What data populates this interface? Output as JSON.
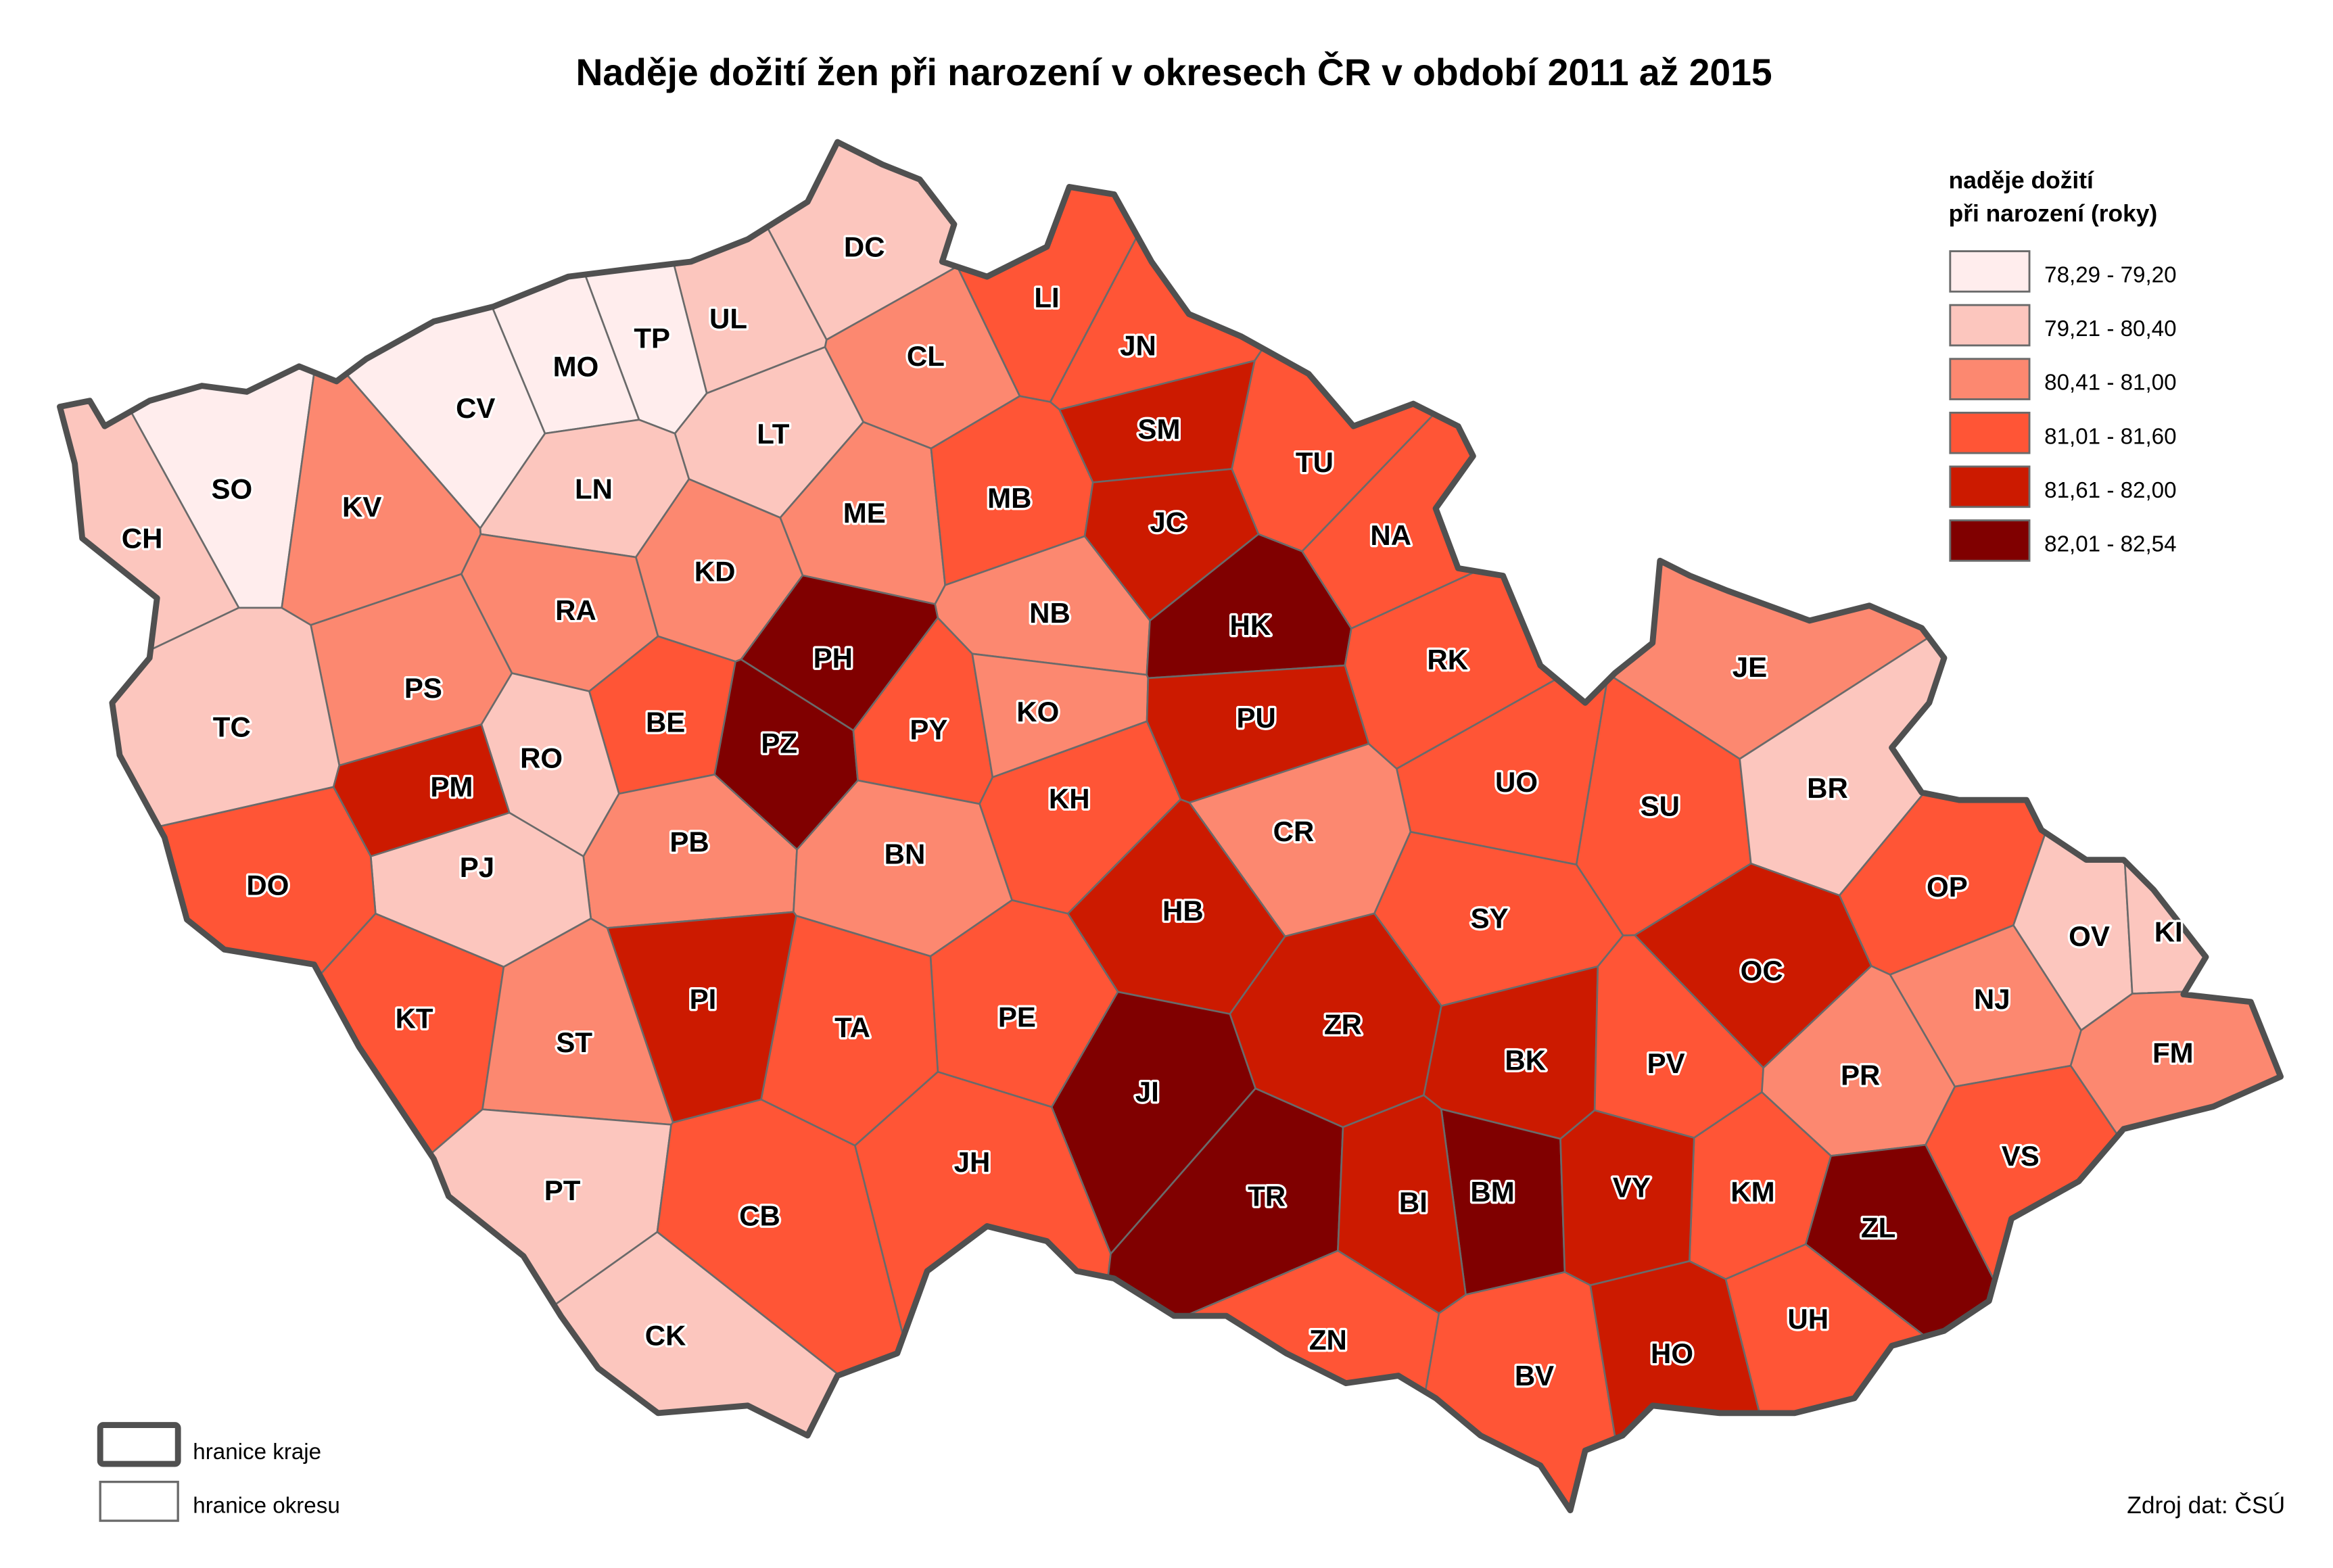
{
  "title": "Naděje dožití žen při narození v okresech ČR v období 2011 až 2015",
  "legend": {
    "title_line1": "naděje dožití",
    "title_line2": "při narození (roky)",
    "classes": [
      {
        "label": "78,29 - 79,20",
        "color": "#FFEDED"
      },
      {
        "label": "79,21 - 80,40",
        "color": "#FCC6BE"
      },
      {
        "label": "80,41 - 81,00",
        "color": "#FC8870"
      },
      {
        "label": "81,01 - 81,60",
        "color": "#FF5536"
      },
      {
        "label": "81,61 - 82,00",
        "color": "#CC1A00"
      },
      {
        "label": "82,01 - 82,54",
        "color": "#800000"
      }
    ]
  },
  "border_legend": {
    "region": "hranice kraje",
    "district": "hranice okresu"
  },
  "source": "Zdroj dat: ČSÚ",
  "districts": [
    {
      "code": "DC",
      "class": 2
    },
    {
      "code": "UL",
      "class": 2
    },
    {
      "code": "TP",
      "class": 1
    },
    {
      "code": "MO",
      "class": 1
    },
    {
      "code": "CV",
      "class": 1
    },
    {
      "code": "LT",
      "class": 2
    },
    {
      "code": "CL",
      "class": 3
    },
    {
      "code": "LI",
      "class": 4
    },
    {
      "code": "JN",
      "class": 4
    },
    {
      "code": "SM",
      "class": 5
    },
    {
      "code": "TU",
      "class": 4
    },
    {
      "code": "SO",
      "class": 1
    },
    {
      "code": "KV",
      "class": 3
    },
    {
      "code": "CH",
      "class": 2
    },
    {
      "code": "LN",
      "class": 2
    },
    {
      "code": "ME",
      "class": 3
    },
    {
      "code": "MB",
      "class": 4
    },
    {
      "code": "JC",
      "class": 5
    },
    {
      "code": "NA",
      "class": 4
    },
    {
      "code": "RA",
      "class": 3
    },
    {
      "code": "KD",
      "class": 3
    },
    {
      "code": "NB",
      "class": 3
    },
    {
      "code": "HK",
      "class": 6
    },
    {
      "code": "RK",
      "class": 4
    },
    {
      "code": "JE",
      "class": 3
    },
    {
      "code": "PH",
      "class": 6
    },
    {
      "code": "PS",
      "class": 3
    },
    {
      "code": "TC",
      "class": 2
    },
    {
      "code": "BE",
      "class": 4
    },
    {
      "code": "PZ",
      "class": 6
    },
    {
      "code": "PY",
      "class": 4
    },
    {
      "code": "KO",
      "class": 3
    },
    {
      "code": "PU",
      "class": 5
    },
    {
      "code": "RO",
      "class": 2
    },
    {
      "code": "PM",
      "class": 5
    },
    {
      "code": "KH",
      "class": 4
    },
    {
      "code": "UO",
      "class": 4
    },
    {
      "code": "SU",
      "class": 4
    },
    {
      "code": "BR",
      "class": 2
    },
    {
      "code": "CR",
      "class": 3
    },
    {
      "code": "PB",
      "class": 3
    },
    {
      "code": "BN",
      "class": 3
    },
    {
      "code": "PJ",
      "class": 2
    },
    {
      "code": "DO",
      "class": 4
    },
    {
      "code": "OP",
      "class": 4
    },
    {
      "code": "HB",
      "class": 5
    },
    {
      "code": "SY",
      "class": 4
    },
    {
      "code": "OV",
      "class": 2
    },
    {
      "code": "KI",
      "class": 2
    },
    {
      "code": "OC",
      "class": 5
    },
    {
      "code": "NJ",
      "class": 3
    },
    {
      "code": "PI",
      "class": 5
    },
    {
      "code": "PE",
      "class": 4
    },
    {
      "code": "TA",
      "class": 4
    },
    {
      "code": "KT",
      "class": 4
    },
    {
      "code": "ZR",
      "class": 5
    },
    {
      "code": "ST",
      "class": 3
    },
    {
      "code": "FM",
      "class": 3
    },
    {
      "code": "BK",
      "class": 5
    },
    {
      "code": "PV",
      "class": 4
    },
    {
      "code": "PR",
      "class": 3
    },
    {
      "code": "JI",
      "class": 6
    },
    {
      "code": "VS",
      "class": 4
    },
    {
      "code": "JH",
      "class": 4
    },
    {
      "code": "PT",
      "class": 2
    },
    {
      "code": "KM",
      "class": 4
    },
    {
      "code": "TR",
      "class": 6
    },
    {
      "code": "BM",
      "class": 6
    },
    {
      "code": "VY",
      "class": 5
    },
    {
      "code": "BI",
      "class": 5
    },
    {
      "code": "CB",
      "class": 4
    },
    {
      "code": "ZL",
      "class": 6
    },
    {
      "code": "UH",
      "class": 4
    },
    {
      "code": "CK",
      "class": 2
    },
    {
      "code": "ZN",
      "class": 4
    },
    {
      "code": "BV",
      "class": 4
    },
    {
      "code": "HO",
      "class": 5
    }
  ]
}
